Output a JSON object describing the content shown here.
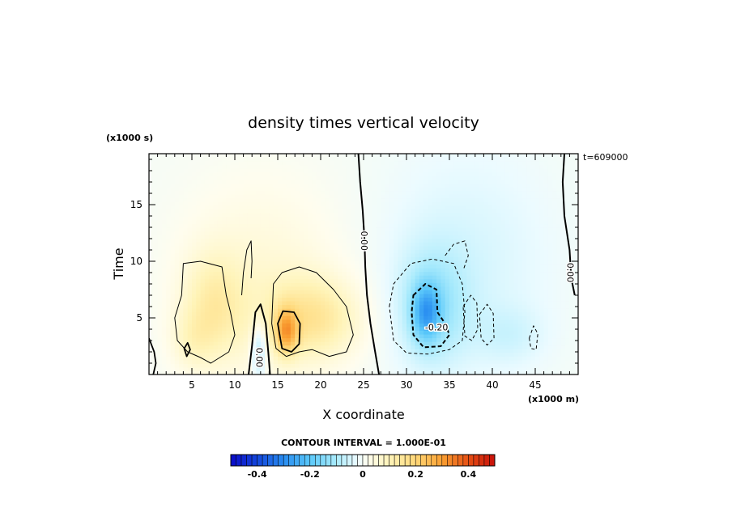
{
  "chart_data": {
    "type": "heatmap",
    "title": "density times vertical velocity",
    "xlabel": "X coordinate",
    "ylabel": "Time",
    "x_unit": "(x1000 m)",
    "y_unit": "(x1000 s)",
    "time_stamp": "t=609000",
    "xlim": [
      0,
      50
    ],
    "ylim": [
      0,
      19.5
    ],
    "x_ticks": [
      5,
      10,
      15,
      20,
      25,
      30,
      35,
      40,
      45
    ],
    "y_ticks": [
      5,
      10,
      15
    ],
    "contour_interval_text": "CONTOUR INTERVAL = 1.000E-01",
    "contour_interval": 0.1,
    "contour_labels": [
      {
        "text": "0.00",
        "x": 25.0,
        "y": 11.8
      },
      {
        "text": "0.00",
        "x": 12.8,
        "y": 1.5
      },
      {
        "text": "-0.20",
        "x": 33.5,
        "y": 4.1
      },
      {
        "text": "0.00",
        "x": 49.0,
        "y": 9.0
      }
    ],
    "colorbar": {
      "min": -0.5,
      "max": 0.5,
      "tick_values": [
        -0.4,
        -0.2,
        0,
        0.2,
        0.4
      ],
      "tick_labels": [
        "-0.4",
        "-0.2",
        "0",
        "0.2",
        "0.4"
      ]
    },
    "features": [
      {
        "sign": "positive",
        "x": 7.5,
        "y": 6.5,
        "peak": 0.15
      },
      {
        "sign": "positive",
        "x": 16.0,
        "y": 4.0,
        "peak": 0.33
      },
      {
        "sign": "negative",
        "x": 32.5,
        "y": 5.5,
        "peak": -0.32
      },
      {
        "sign": "negative",
        "x": 12.8,
        "y": 2.5,
        "peak": -0.06
      }
    ],
    "colors": {
      "negative_extreme": "#0a0acc",
      "positive_extreme": "#c80f0a",
      "zero": "#ffffff"
    }
  }
}
